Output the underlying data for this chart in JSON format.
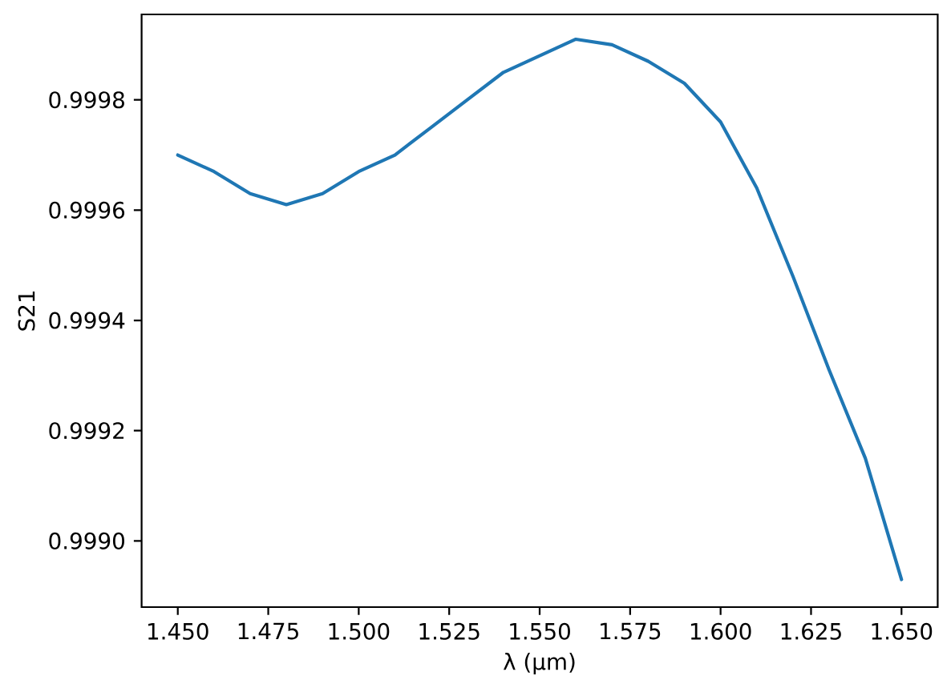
{
  "chart_data": {
    "type": "line",
    "xlabel": "λ (μm)",
    "ylabel": "S21",
    "x": [
      1.45,
      1.46,
      1.47,
      1.48,
      1.49,
      1.5,
      1.51,
      1.52,
      1.53,
      1.54,
      1.55,
      1.56,
      1.57,
      1.58,
      1.59,
      1.6,
      1.61,
      1.62,
      1.63,
      1.64,
      1.65
    ],
    "series": [
      {
        "color": "#1f77b4",
        "values": [
          0.9997,
          0.99967,
          0.99963,
          0.99961,
          0.99963,
          0.99967,
          0.9997,
          0.99975,
          0.9998,
          0.99985,
          0.99988,
          0.99991,
          0.9999,
          0.99987,
          0.99983,
          0.99976,
          0.99964,
          0.99948,
          0.99931,
          0.99915,
          0.99893
        ]
      }
    ],
    "xlim": [
      1.44,
      1.66
    ],
    "ylim": [
      0.99888,
      0.999955
    ],
    "xticks": [
      {
        "value": 1.45,
        "label": "1.450"
      },
      {
        "value": 1.475,
        "label": "1.475"
      },
      {
        "value": 1.5,
        "label": "1.500"
      },
      {
        "value": 1.525,
        "label": "1.525"
      },
      {
        "value": 1.55,
        "label": "1.550"
      },
      {
        "value": 1.575,
        "label": "1.575"
      },
      {
        "value": 1.6,
        "label": "1.600"
      },
      {
        "value": 1.625,
        "label": "1.625"
      },
      {
        "value": 1.65,
        "label": "1.650"
      }
    ],
    "yticks": [
      {
        "value": 0.999,
        "label": "0.9990"
      },
      0.9992,
      0.9994,
      0.9996,
      0.9998
    ]
  }
}
